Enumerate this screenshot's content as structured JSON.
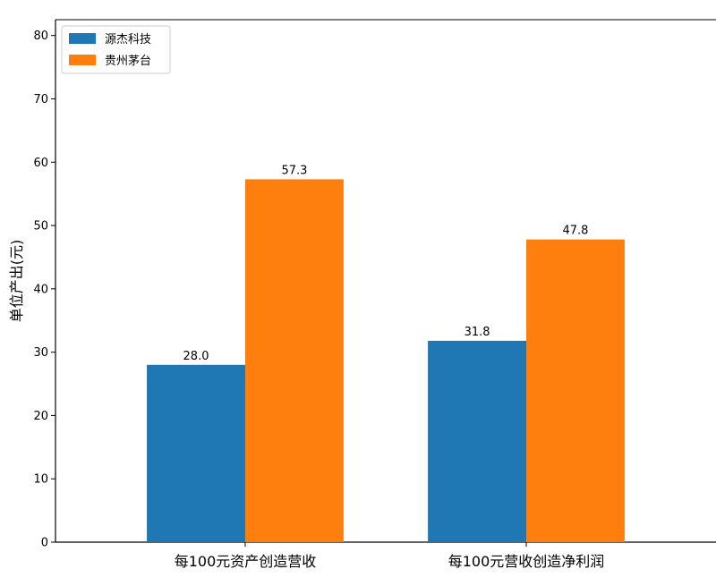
{
  "chart_data": {
    "type": "bar",
    "categories": [
      "每100元资产创造营收",
      "每100元营收创造净利润"
    ],
    "series": [
      {
        "name": "源杰科技",
        "color": "#1f77b4",
        "values": [
          28.0,
          31.8
        ],
        "labels": [
          "28.0",
          "31.8"
        ]
      },
      {
        "name": "贵州茅台",
        "color": "#ff7f0e",
        "values": [
          57.3,
          47.8
        ],
        "labels": [
          "57.3",
          "47.8"
        ]
      }
    ],
    "xlabel": "",
    "ylabel": "单位产出(元)",
    "ylim": [
      0,
      82.5
    ],
    "yticks": [
      0,
      10,
      20,
      30,
      40,
      50,
      60,
      70,
      80
    ],
    "ytick_labels": [
      "0",
      "10",
      "20",
      "30",
      "40",
      "50",
      "60",
      "70",
      "80"
    ],
    "grid": false,
    "legend_position": "top-left"
  }
}
